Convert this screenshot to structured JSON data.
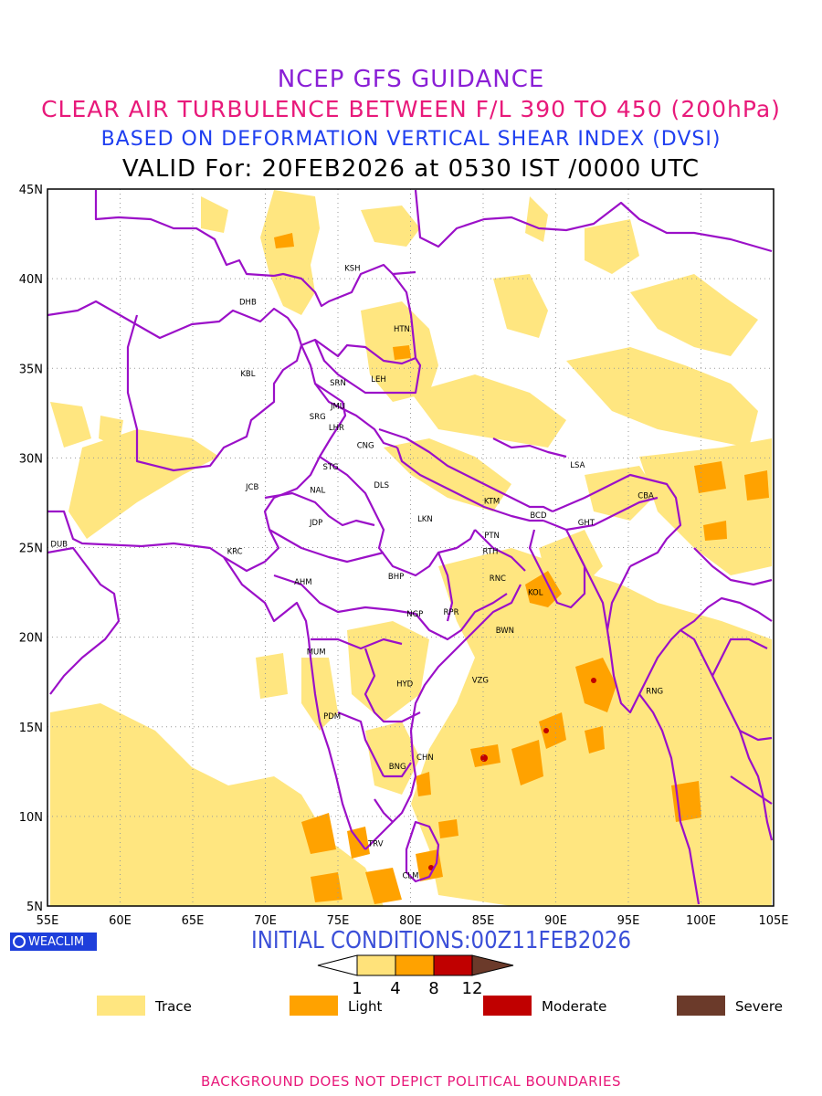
{
  "header": {
    "line1": "NCEP GFS GUIDANCE",
    "line2": "CLEAR AIR TURBULENCE BETWEEN F/L 390 TO 450 (200hPa)",
    "line3": "BASED ON DEFORMATION VERTICAL SHEAR INDEX (DVSI)",
    "line4": "VALID For: 20FEB2026 at 0530 IST /0000 UTC"
  },
  "map": {
    "lon_range": [
      55,
      105
    ],
    "lat_range": [
      5,
      45
    ],
    "lon_ticks": [
      "55E",
      "60E",
      "65E",
      "70E",
      "75E",
      "80E",
      "85E",
      "90E",
      "95E",
      "100E",
      "105E"
    ],
    "lat_ticks": [
      "5N",
      "10N",
      "15N",
      "20N",
      "25N",
      "30N",
      "35N",
      "40N",
      "45N"
    ],
    "grid": true,
    "boundary_color": "#9b10c8",
    "stations": [
      {
        "code": "KSH",
        "lon": 76.0,
        "lat": 40.6
      },
      {
        "code": "DHB",
        "lon": 68.8,
        "lat": 38.7
      },
      {
        "code": "HTN",
        "lon": 79.4,
        "lat": 37.2
      },
      {
        "code": "KBL",
        "lon": 68.8,
        "lat": 34.7
      },
      {
        "code": "SRN",
        "lon": 75.0,
        "lat": 34.2
      },
      {
        "code": "LEH",
        "lon": 77.8,
        "lat": 34.4
      },
      {
        "code": "JMU",
        "lon": 75.0,
        "lat": 32.9
      },
      {
        "code": "SRG",
        "lon": 73.6,
        "lat": 32.3
      },
      {
        "code": "LHR",
        "lon": 74.9,
        "lat": 31.7
      },
      {
        "code": "CNG",
        "lon": 76.9,
        "lat": 30.7
      },
      {
        "code": "STG",
        "lon": 74.5,
        "lat": 29.5
      },
      {
        "code": "JCB",
        "lon": 69.1,
        "lat": 28.4
      },
      {
        "code": "NAL",
        "lon": 73.6,
        "lat": 28.2
      },
      {
        "code": "DLS",
        "lon": 78.0,
        "lat": 28.5
      },
      {
        "code": "JDP",
        "lon": 73.5,
        "lat": 26.4
      },
      {
        "code": "LKN",
        "lon": 81.0,
        "lat": 26.6
      },
      {
        "code": "KTM",
        "lon": 85.6,
        "lat": 27.6
      },
      {
        "code": "LSA",
        "lon": 91.5,
        "lat": 29.6
      },
      {
        "code": "BCD",
        "lon": 88.8,
        "lat": 26.8
      },
      {
        "code": "CBA",
        "lon": 96.2,
        "lat": 27.9
      },
      {
        "code": "GHT",
        "lon": 92.1,
        "lat": 26.4
      },
      {
        "code": "PTN",
        "lon": 85.6,
        "lat": 25.7
      },
      {
        "code": "DUB",
        "lon": 55.8,
        "lat": 25.2
      },
      {
        "code": "KRC",
        "lon": 67.9,
        "lat": 24.8
      },
      {
        "code": "RTH",
        "lon": 85.5,
        "lat": 24.8
      },
      {
        "code": "AHM",
        "lon": 72.6,
        "lat": 23.1
      },
      {
        "code": "BHP",
        "lon": 79.0,
        "lat": 23.4
      },
      {
        "code": "RNC",
        "lon": 86.0,
        "lat": 23.3
      },
      {
        "code": "KOL",
        "lon": 88.6,
        "lat": 22.5
      },
      {
        "code": "NGP",
        "lon": 80.3,
        "lat": 21.3
      },
      {
        "code": "RPR",
        "lon": 82.8,
        "lat": 21.4
      },
      {
        "code": "BWN",
        "lon": 86.5,
        "lat": 20.4
      },
      {
        "code": "MUM",
        "lon": 73.5,
        "lat": 19.2
      },
      {
        "code": "HYD",
        "lon": 79.6,
        "lat": 17.4
      },
      {
        "code": "VZG",
        "lon": 84.8,
        "lat": 17.6
      },
      {
        "code": "RNG",
        "lon": 96.8,
        "lat": 17.0
      },
      {
        "code": "PDM",
        "lon": 74.6,
        "lat": 15.6
      },
      {
        "code": "CHN",
        "lon": 81.0,
        "lat": 13.3
      },
      {
        "code": "BNG",
        "lon": 79.1,
        "lat": 12.8
      },
      {
        "code": "TRV",
        "lon": 77.6,
        "lat": 8.5
      },
      {
        "code": "CLM",
        "lon": 80.0,
        "lat": 6.7
      }
    ]
  },
  "initial_conditions": "INITIAL CONDITIONS:00Z11FEB2026",
  "logo": {
    "text": "WEACLIM"
  },
  "colorbar": {
    "ticks": [
      "1",
      "4",
      "8",
      "12"
    ],
    "colors": [
      "#ffffff",
      "#ffe27a",
      "#ffa200",
      "#c00000",
      "#6b3a2a"
    ]
  },
  "legend": [
    {
      "label": "Trace",
      "color": "#ffe680"
    },
    {
      "label": "Light",
      "color": "#ffa200"
    },
    {
      "label": "Moderate",
      "color": "#c00000"
    },
    {
      "label": "Severe",
      "color": "#6b3a2a"
    }
  ],
  "footer": "BACKGROUND DOES NOT DEPICT POLITICAL BOUNDARIES"
}
